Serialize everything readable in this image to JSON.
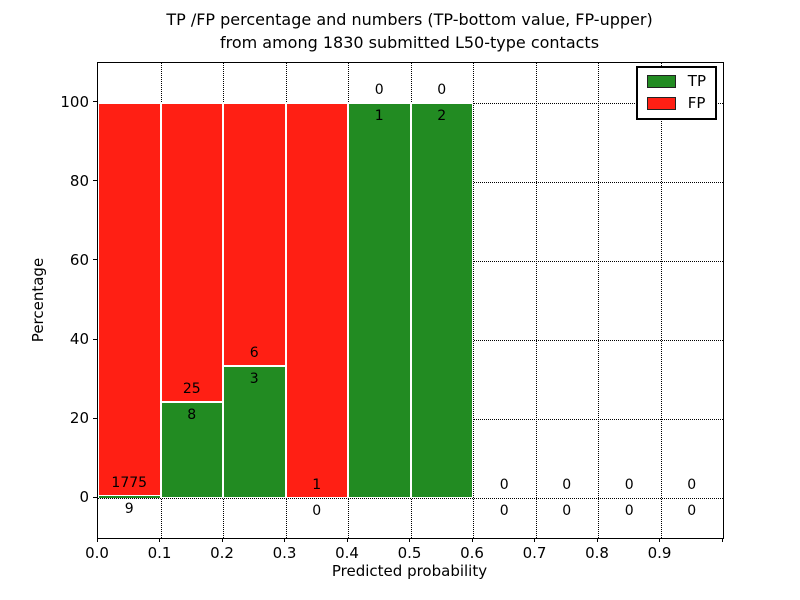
{
  "title_line1": "TP /FP percentage and numbers (TP-bottom value, FP-upper)",
  "title_line2": "from among 1830 submitted L50-type contacts",
  "chart_data": {
    "type": "bar",
    "stacked": true,
    "units": "percent",
    "title": "TP /FP percentage and numbers (TP-bottom value, FP-upper) from among 1830 submitted L50-type contacts",
    "xlabel": "Predicted probability",
    "ylabel": "Percentage",
    "xlim": [
      0.0,
      1.0
    ],
    "ylim": [
      -10,
      110
    ],
    "yticks": [
      0,
      20,
      40,
      60,
      80,
      100
    ],
    "xticks": [
      "0.0",
      "0.1",
      "0.2",
      "0.3",
      "0.4",
      "0.5",
      "0.6",
      "0.7",
      "0.8",
      "0.9"
    ],
    "grid": "dotted",
    "annotation_rule": "TP count shown below green top boundary, FP count shown above it",
    "total_contacts": 1830,
    "colors": {
      "tp": "#228b22",
      "fp": "#ff1f14"
    },
    "legend": {
      "position": "upper right",
      "entries": [
        {
          "label": "TP",
          "color": "#228b22"
        },
        {
          "label": "FP",
          "color": "#ff1f14"
        }
      ]
    },
    "bins": [
      {
        "x_start": 0.0,
        "x_end": 0.1,
        "tp": 9,
        "fp": 1775
      },
      {
        "x_start": 0.1,
        "x_end": 0.2,
        "tp": 8,
        "fp": 25
      },
      {
        "x_start": 0.2,
        "x_end": 0.3,
        "tp": 3,
        "fp": 6
      },
      {
        "x_start": 0.3,
        "x_end": 0.4,
        "tp": 0,
        "fp": 1
      },
      {
        "x_start": 0.4,
        "x_end": 0.5,
        "tp": 1,
        "fp": 0
      },
      {
        "x_start": 0.5,
        "x_end": 0.6,
        "tp": 2,
        "fp": 0
      },
      {
        "x_start": 0.6,
        "x_end": 0.7,
        "tp": 0,
        "fp": 0
      },
      {
        "x_start": 0.7,
        "x_end": 0.8,
        "tp": 0,
        "fp": 0
      },
      {
        "x_start": 0.8,
        "x_end": 0.9,
        "tp": 0,
        "fp": 0
      },
      {
        "x_start": 0.9,
        "x_end": 1.0,
        "tp": 0,
        "fp": 0
      }
    ]
  }
}
